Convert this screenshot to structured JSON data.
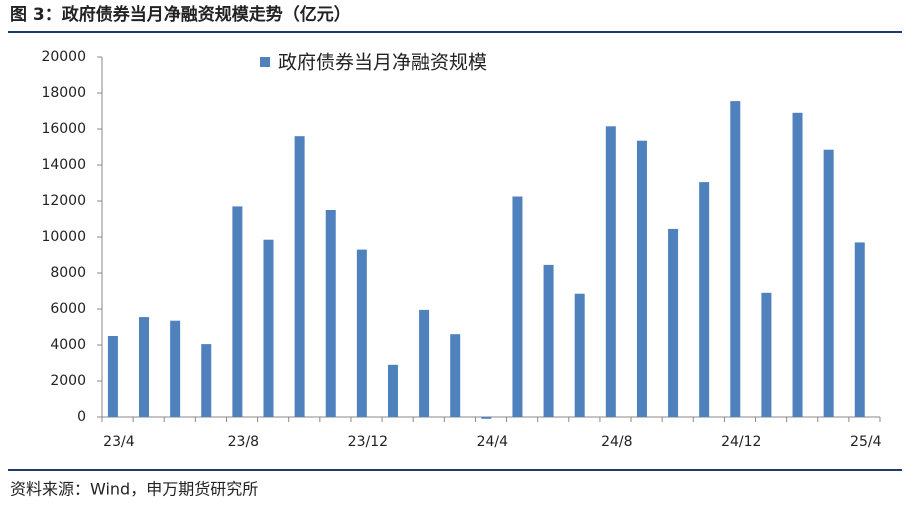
{
  "chart_data": {
    "type": "bar",
    "title": "图 3：政府债券当月净融资规模走势（亿元）",
    "source": "资料来源：Wind，申万期货研究所",
    "categories": [
      "23/4",
      null,
      null,
      null,
      "23/8",
      null,
      null,
      null,
      "23/12",
      null,
      null,
      null,
      "24/4",
      null,
      null,
      null,
      "24/8",
      null,
      null,
      null,
      "24/12",
      null,
      null,
      null,
      "25/4"
    ],
    "series": [
      {
        "name": "政府债券当月净融资规模",
        "color": "#4f81bd",
        "values": [
          4500,
          5550,
          5350,
          4050,
          11700,
          9850,
          15600,
          11500,
          9300,
          2900,
          5950,
          4600,
          -100,
          12250,
          8450,
          6850,
          16150,
          15350,
          10450,
          13050,
          17550,
          6900,
          16900,
          14850,
          9700
        ]
      }
    ],
    "ylim": [
      0,
      20000
    ],
    "yticks": [
      0,
      2000,
      4000,
      6000,
      8000,
      10000,
      12000,
      14000,
      16000,
      18000,
      20000
    ],
    "grid": false,
    "legend": "top"
  }
}
